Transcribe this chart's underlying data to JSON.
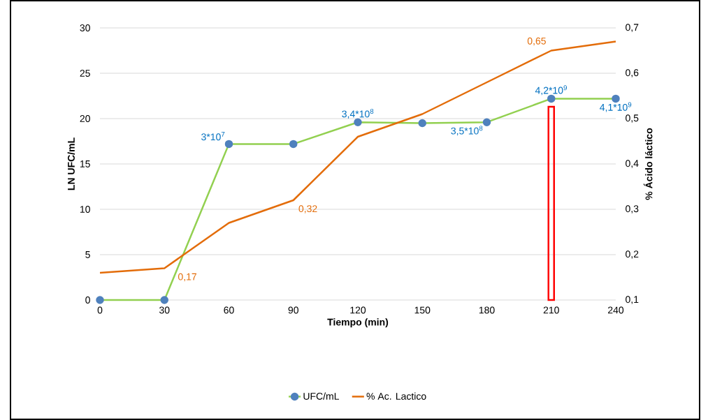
{
  "chart_data": {
    "type": "line",
    "xlabel": "Tiempo (min)",
    "ylabel": "LN UFC/mL",
    "y2label": "% Ácido láctico",
    "x": [
      0,
      30,
      60,
      90,
      120,
      150,
      180,
      210,
      240
    ],
    "series": [
      {
        "name": "UFC/mL",
        "color": "#92d050",
        "marker": "circle",
        "values": [
          0,
          0,
          17.2,
          17.2,
          19.6,
          19.5,
          19.6,
          22.2,
          22.2
        ]
      },
      {
        "type": "bar",
        "color": "#ff0000",
        "x": [
          210
        ],
        "values": [
          21.3
        ]
      },
      {
        "name": "% Ac. Lactico",
        "color": "#e36c09",
        "marker": "none",
        "axis": "y2",
        "values": [
          0.16,
          0.17,
          0.27,
          0.32,
          0.46,
          0.51,
          0.58,
          0.65,
          0.67
        ],
        "value_labels": [
          null,
          "0,17",
          null,
          "0,32",
          null,
          null,
          null,
          "0,65",
          null
        ]
      }
    ],
    "xlim": [
      0,
      240
    ],
    "xticks": [
      0,
      30,
      60,
      90,
      120,
      150,
      180,
      210,
      240
    ],
    "ylim": [
      0,
      30
    ],
    "yticks": [
      0,
      5,
      10,
      15,
      20,
      25,
      30
    ],
    "y2lim": [
      0.1,
      0.7
    ],
    "y2ticks": [
      {
        "value": 0.1,
        "label": "0,1"
      },
      {
        "value": 0.2,
        "label": "0,2"
      },
      {
        "value": 0.3,
        "label": "0,3"
      },
      {
        "value": 0.4,
        "label": "0,4"
      },
      {
        "value": 0.5,
        "label": "0,5"
      },
      {
        "value": 0.6,
        "label": "0,6"
      },
      {
        "value": 0.7,
        "label": "0,7"
      }
    ],
    "annotations": [
      {
        "text": "3*10$^{7}$",
        "x": 60,
        "y": 17.2
      },
      {
        "text": "3,4*10$^{8}$",
        "x": 120,
        "y": 19.6
      },
      {
        "text": "3,5*10$^{8}$",
        "x": 180,
        "y": 19.6
      },
      {
        "text": "4,2*10$^{9}$",
        "x": 210,
        "y": 22.2
      },
      {
        "text": "4,1*10$^{9}$",
        "x": 240,
        "y": 22.2
      }
    ],
    "grid": "y",
    "legend": "bottom",
    "line_style": "solid"
  }
}
